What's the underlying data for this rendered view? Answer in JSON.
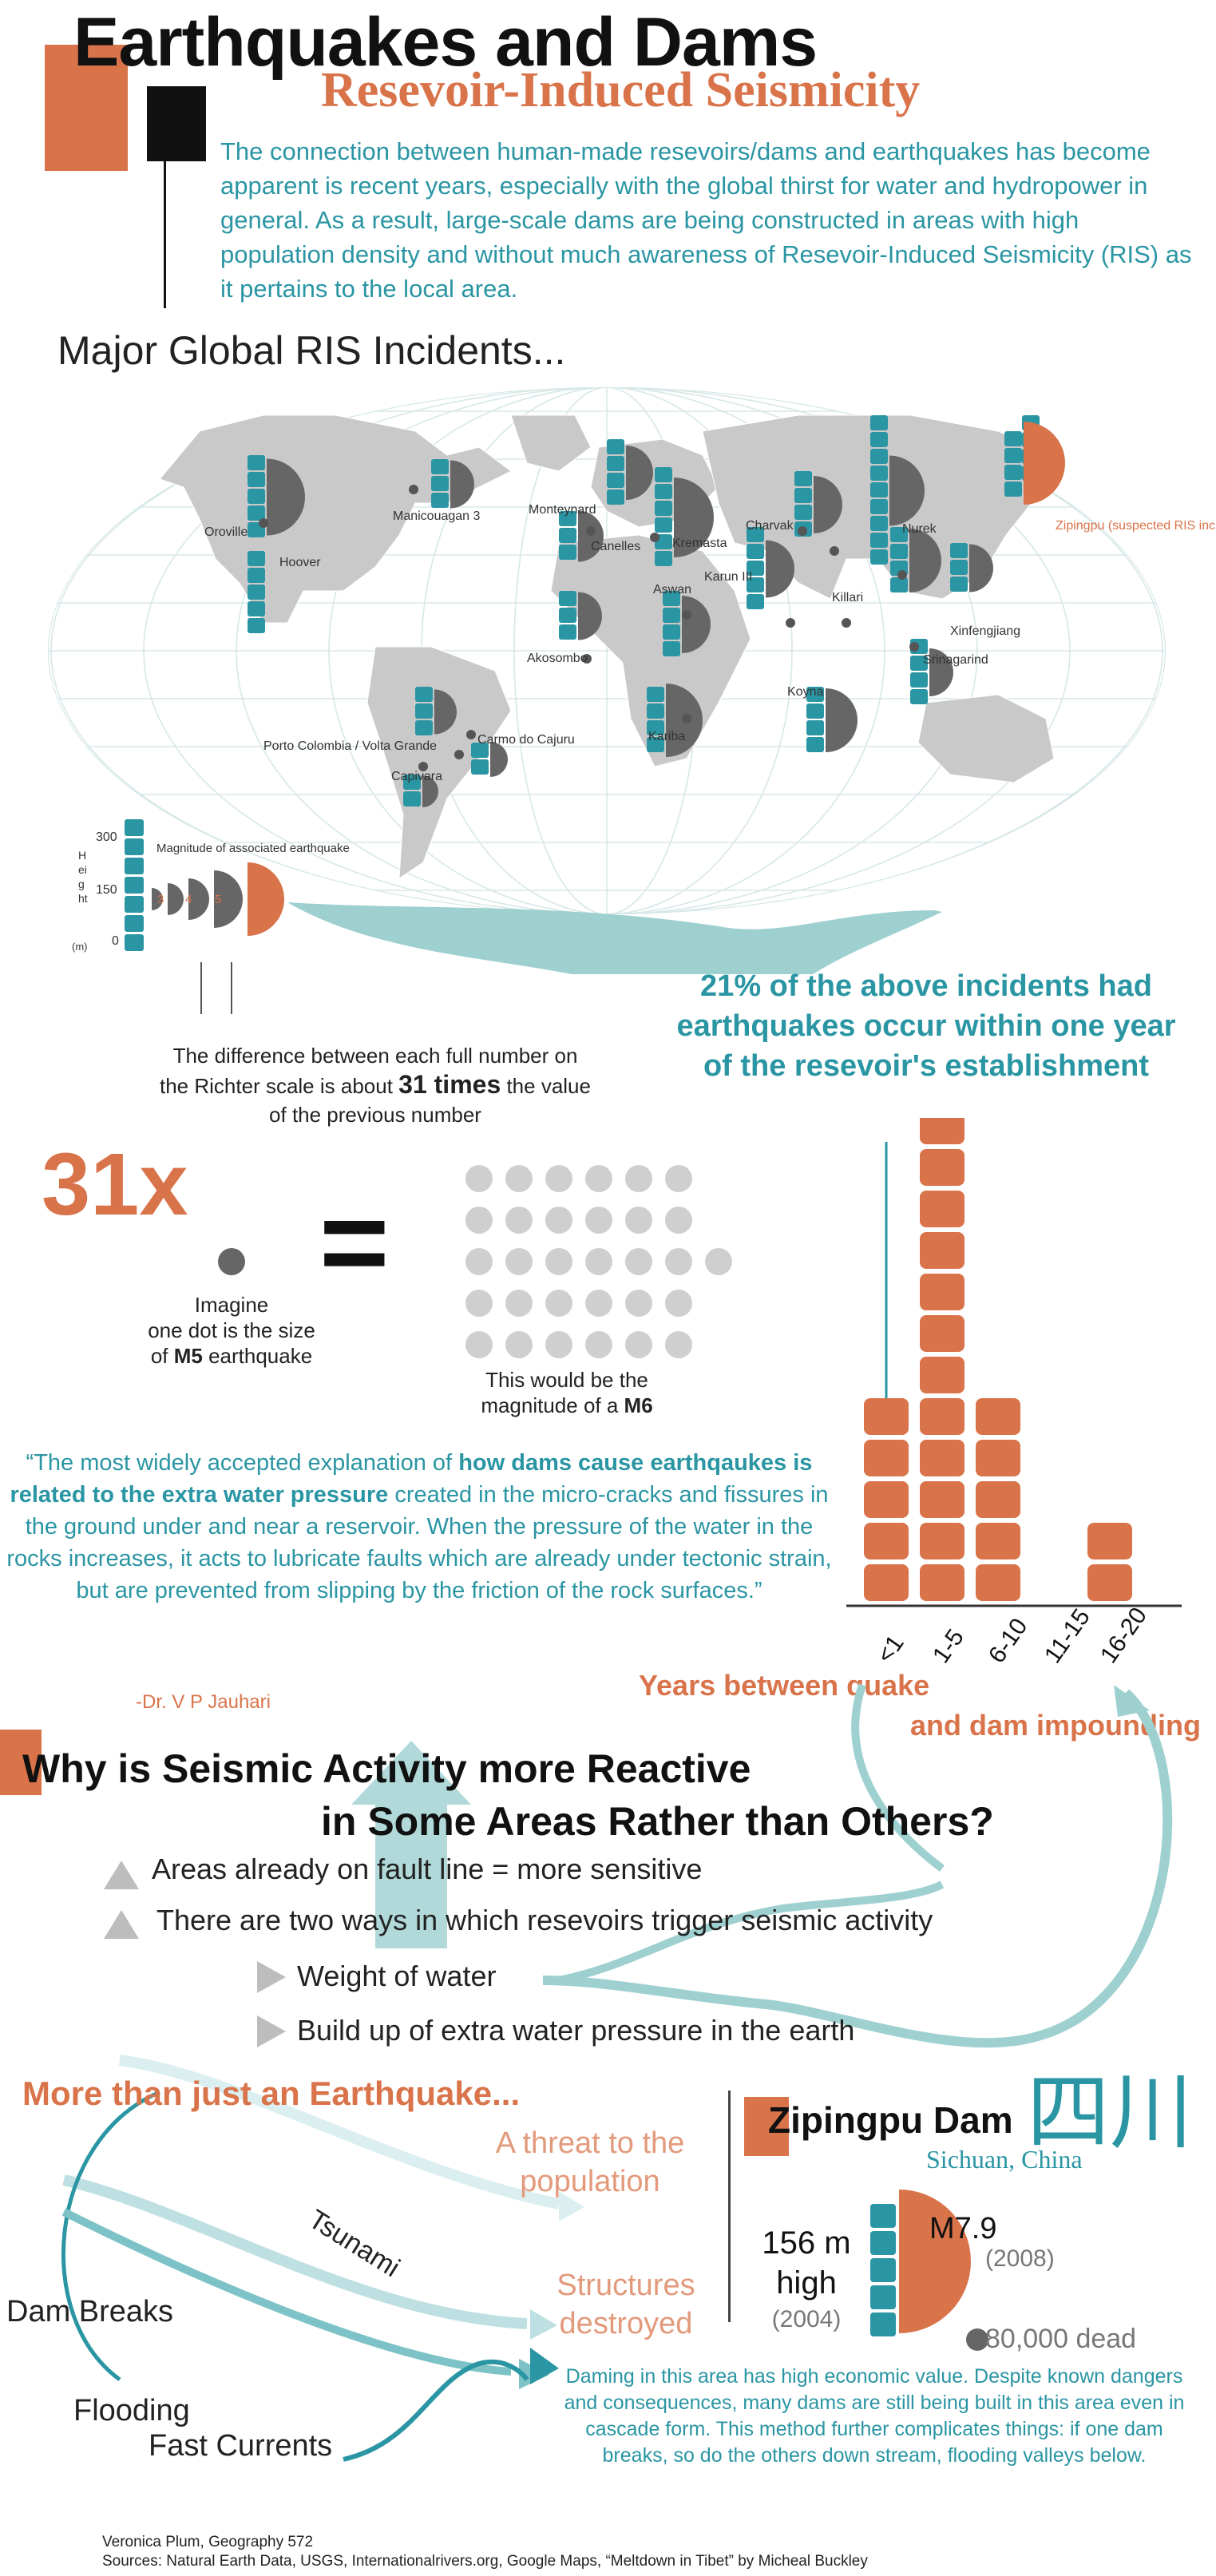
{
  "title": "Earthquakes and Dams",
  "subtitle": "Resevoir-Induced Seismicity",
  "intro": "The connection between human-made resevoirs/dams and earthquakes has become apparent is recent years, especially with the global thirst for water and hydropower in general. As a result, large-scale dams are being constructed in areas with high population density and without much awareness of Resevoir-Induced Seismicity (RIS) as it pertains to the local area.",
  "map": {
    "heading": "Major Global RIS Incidents...",
    "dams": [
      {
        "name": "Oroville"
      },
      {
        "name": "Hoover"
      },
      {
        "name": "Manicouagan 3"
      },
      {
        "name": "Monteynard"
      },
      {
        "name": "Canelles"
      },
      {
        "name": "Kremasta"
      },
      {
        "name": "Charvak"
      },
      {
        "name": "Nurek"
      },
      {
        "name": "Zipingpu (suspected RIS incident)"
      },
      {
        "name": "Karun III"
      },
      {
        "name": "Aswan"
      },
      {
        "name": "Killari"
      },
      {
        "name": "Xinfengjiang"
      },
      {
        "name": "Akosombo"
      },
      {
        "name": "Srinagarind"
      },
      {
        "name": "Koyna"
      },
      {
        "name": "Porto Colombia / Volta Grande"
      },
      {
        "name": "Carmo do Cajuru"
      },
      {
        "name": "Capivara"
      },
      {
        "name": "Kariba"
      }
    ],
    "legend": {
      "magnitude_label": "Magnitude of associated earthquake",
      "height_label": "Height",
      "unit": "(m)",
      "ticks": [
        "300",
        "150",
        "0"
      ],
      "magnitudes": [
        "3",
        "4",
        "5",
        "6",
        "7"
      ]
    }
  },
  "stat_21": "21% of the above incidents had earthquakes occur within one year of the resevoir's establishment",
  "richter": {
    "line1": "The difference between each full number on",
    "line2a": "the Richter scale is about ",
    "times": "31 times",
    "line2b": " the value",
    "line3": "of the previous number"
  },
  "comparison": {
    "big": "31x",
    "equals": "=",
    "imagine1": "Imagine",
    "imagine2": "one dot is the size",
    "imagine3a": "of ",
    "imagine_m5": "M5",
    "imagine3b": " earthquake",
    "m6_line1": "This would be the",
    "m6_line2a": "magnitude of a ",
    "m6_bold": "M6"
  },
  "quote": {
    "p1": "“The most widely accepted explanation of ",
    "b1": "how dams cause earthqaukes is related to the extra water pressure",
    "p2": " created in the micro-cracks and fissures in the ground under and near a reservoir. When the pressure of the water in the rocks increases, it acts to lubricate faults which are already under tectonic strain, but are prevented from slipping by the friction of the rock surfaces.”",
    "author": "-Dr. V P Jauhari"
  },
  "chart_data": {
    "type": "bar",
    "categories": [
      "<1",
      "1-5",
      "6-10",
      "11-15",
      "16-20"
    ],
    "values": [
      5,
      12,
      5,
      0,
      2
    ],
    "xlabel_line1": "Years between quake",
    "xlabel_line2": "and dam impounding"
  },
  "why": {
    "line1": "Why is Seismic Activity more Reactive",
    "line2": "in Some Areas Rather than Others?",
    "bullets": [
      "Areas already on fault line = more sensitive",
      "There are two ways in which resevoirs trigger seismic activity"
    ],
    "sub_bullets": [
      "Weight of water",
      "Build up of extra water pressure in the earth"
    ]
  },
  "more": {
    "heading": "More than just an Earthquake...",
    "threat1": "A threat to the",
    "threat2": "population",
    "tsunami": "Tsunami",
    "structures1": "Structures",
    "structures2": "destroyed",
    "dam_breaks": "Dam Breaks",
    "flooding": "Flooding",
    "fast_currents": "Fast Currents"
  },
  "zipingpu": {
    "title": "Zipingpu Dam",
    "chinese": "四川",
    "location": "Sichuan, China",
    "height1": "156 m",
    "height2": "high",
    "height_year": "(2004)",
    "magnitude": "M7.9",
    "mag_year": "(2008)",
    "dead": "80,000 dead",
    "description": "Daming in this area has high economic value. Despite known dangers and consequences, many dams are still being built in this area even in cascade form. This method further complicates things: if one dam breaks, so do the others down stream, flooding valleys below."
  },
  "credits": {
    "line1": "Veronica Plum, Geography 572",
    "line2": "Sources: Natural Earth Data, USGS, Internationalrivers.org, Google Maps, “Meltdown in Tibet” by Micheal Buckley"
  },
  "colors": {
    "teal": "#2a95a3",
    "orange": "#d9734a",
    "gray": "#666666",
    "light_teal": "#9fd0d0"
  }
}
